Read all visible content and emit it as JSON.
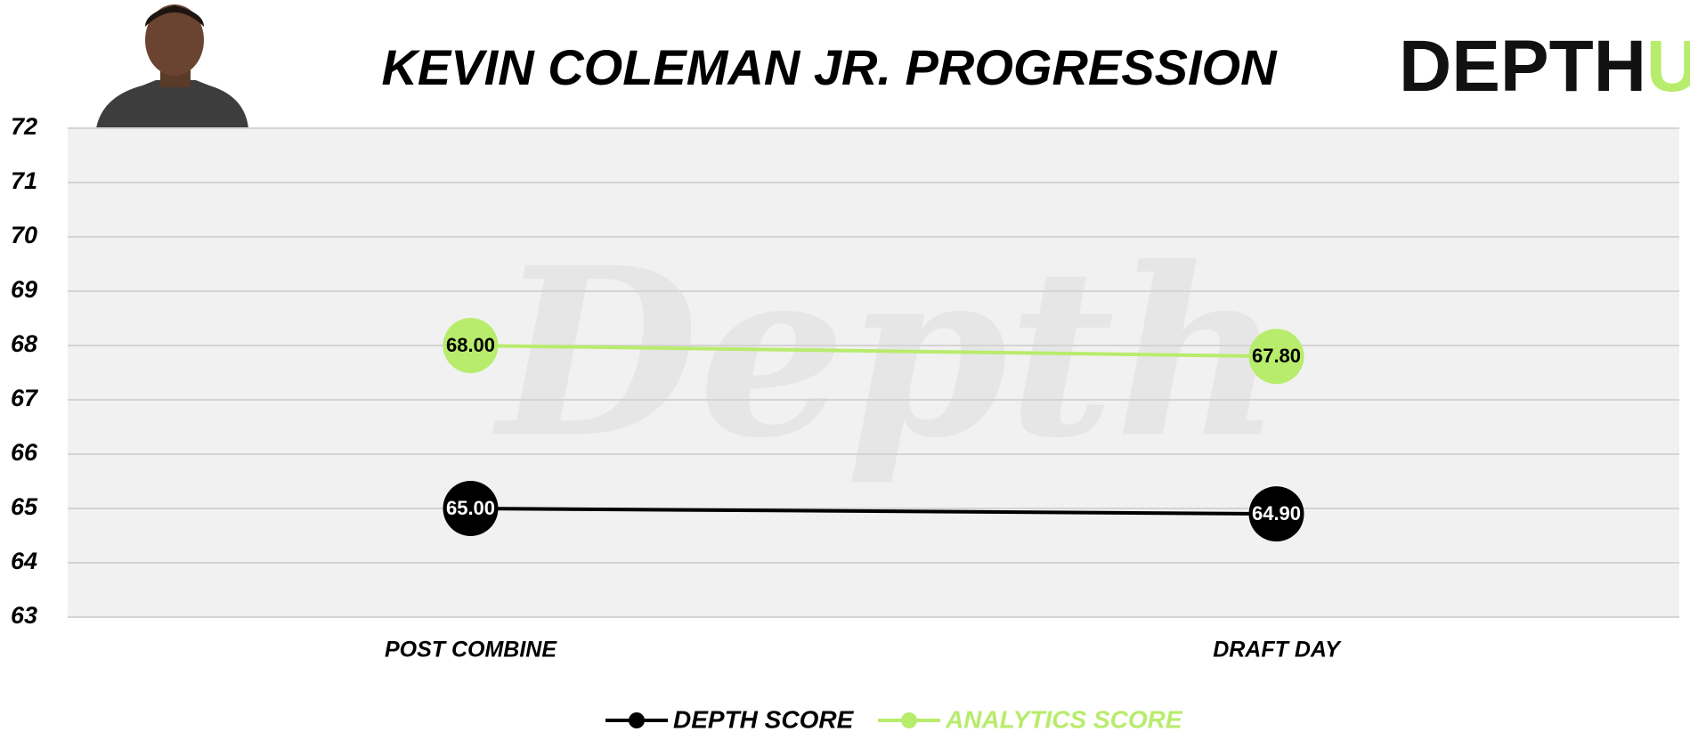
{
  "chart_data": {
    "type": "line",
    "title": "KEVIN COLEMAN JR. PROGRESSION",
    "categories": [
      "POST COMBINE",
      "DRAFT DAY"
    ],
    "series": [
      {
        "name": "DEPTH SCORE",
        "color": "#000000",
        "label_color": "#ffffff",
        "values": [
          65,
          64.9
        ],
        "value_labels": [
          "65.00",
          "64.90"
        ]
      },
      {
        "name": "ANALYTICS SCORE",
        "color": "#b8ec6c",
        "label_color": "#000000",
        "values": [
          68,
          67.8
        ],
        "value_labels": [
          "68.00",
          "67.80"
        ]
      }
    ],
    "ylim": [
      63,
      72
    ],
    "yticks": [
      63,
      64,
      65,
      66,
      67,
      68,
      69,
      70,
      71,
      72
    ],
    "grid": true,
    "legend": "bottom"
  },
  "branding": {
    "logo_main": "DEPTH",
    "logo_accent": "U",
    "watermark": "Depth"
  }
}
